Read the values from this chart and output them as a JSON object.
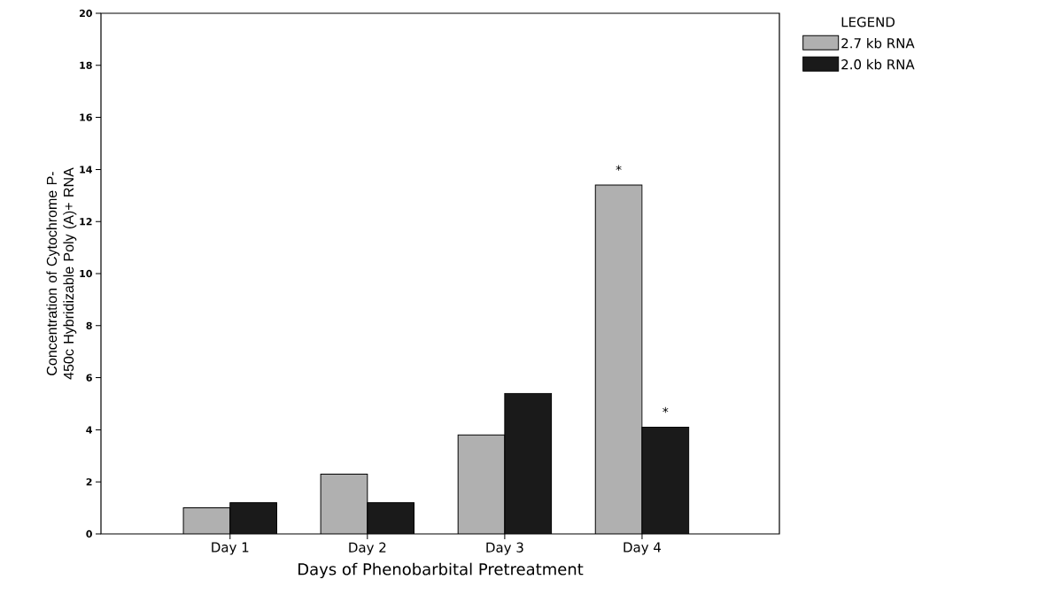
{
  "chart_data": {
    "type": "bar",
    "xlabel": "Days of Phenobarbital Pretreatment",
    "ylabel": "Concentration of Cytochrome P-450c Hybridizable Poly (A)+ RNA",
    "legend_title": "LEGEND",
    "categories": [
      "Day 1",
      "Day 2",
      "Day 3",
      "Day 4"
    ],
    "series": [
      {
        "name": "2.7 kb RNA",
        "color": "#b0b0b0",
        "values": [
          1.0,
          2.3,
          3.8,
          13.4
        ]
      },
      {
        "name": "2.0 kb RNA",
        "color": "#1a1a1a",
        "values": [
          1.2,
          1.2,
          5.4,
          4.1
        ]
      }
    ],
    "annotations": [
      {
        "text": "*",
        "x": "Day 4",
        "y": 13.4
      },
      {
        "text": "*",
        "x": "Day 4",
        "y": 4.1
      }
    ],
    "ylim": [
      0,
      20
    ],
    "yticks": [
      0,
      2,
      4,
      6,
      8,
      10,
      12,
      14,
      16,
      18,
      20
    ],
    "legend": "top right",
    "grid": false
  }
}
